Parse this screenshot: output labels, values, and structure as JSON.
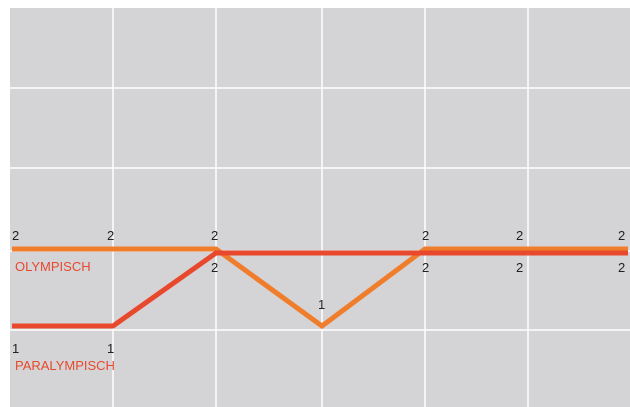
{
  "chart_data": {
    "type": "line",
    "x": [
      1,
      2,
      3,
      4,
      5,
      6,
      7
    ],
    "series": [
      {
        "name": "OLYMPISCH",
        "values": [
          2,
          2,
          2,
          1,
          2,
          2,
          2
        ],
        "color": "#f07d2c"
      },
      {
        "name": "PARALYMPISCH",
        "values": [
          1,
          1,
          2,
          2,
          2,
          2,
          2
        ],
        "color": "#e8482c"
      }
    ],
    "ylim": [
      0,
      4
    ],
    "grid": true,
    "background": "#d4d4d6",
    "legend": "inline labels on left"
  }
}
